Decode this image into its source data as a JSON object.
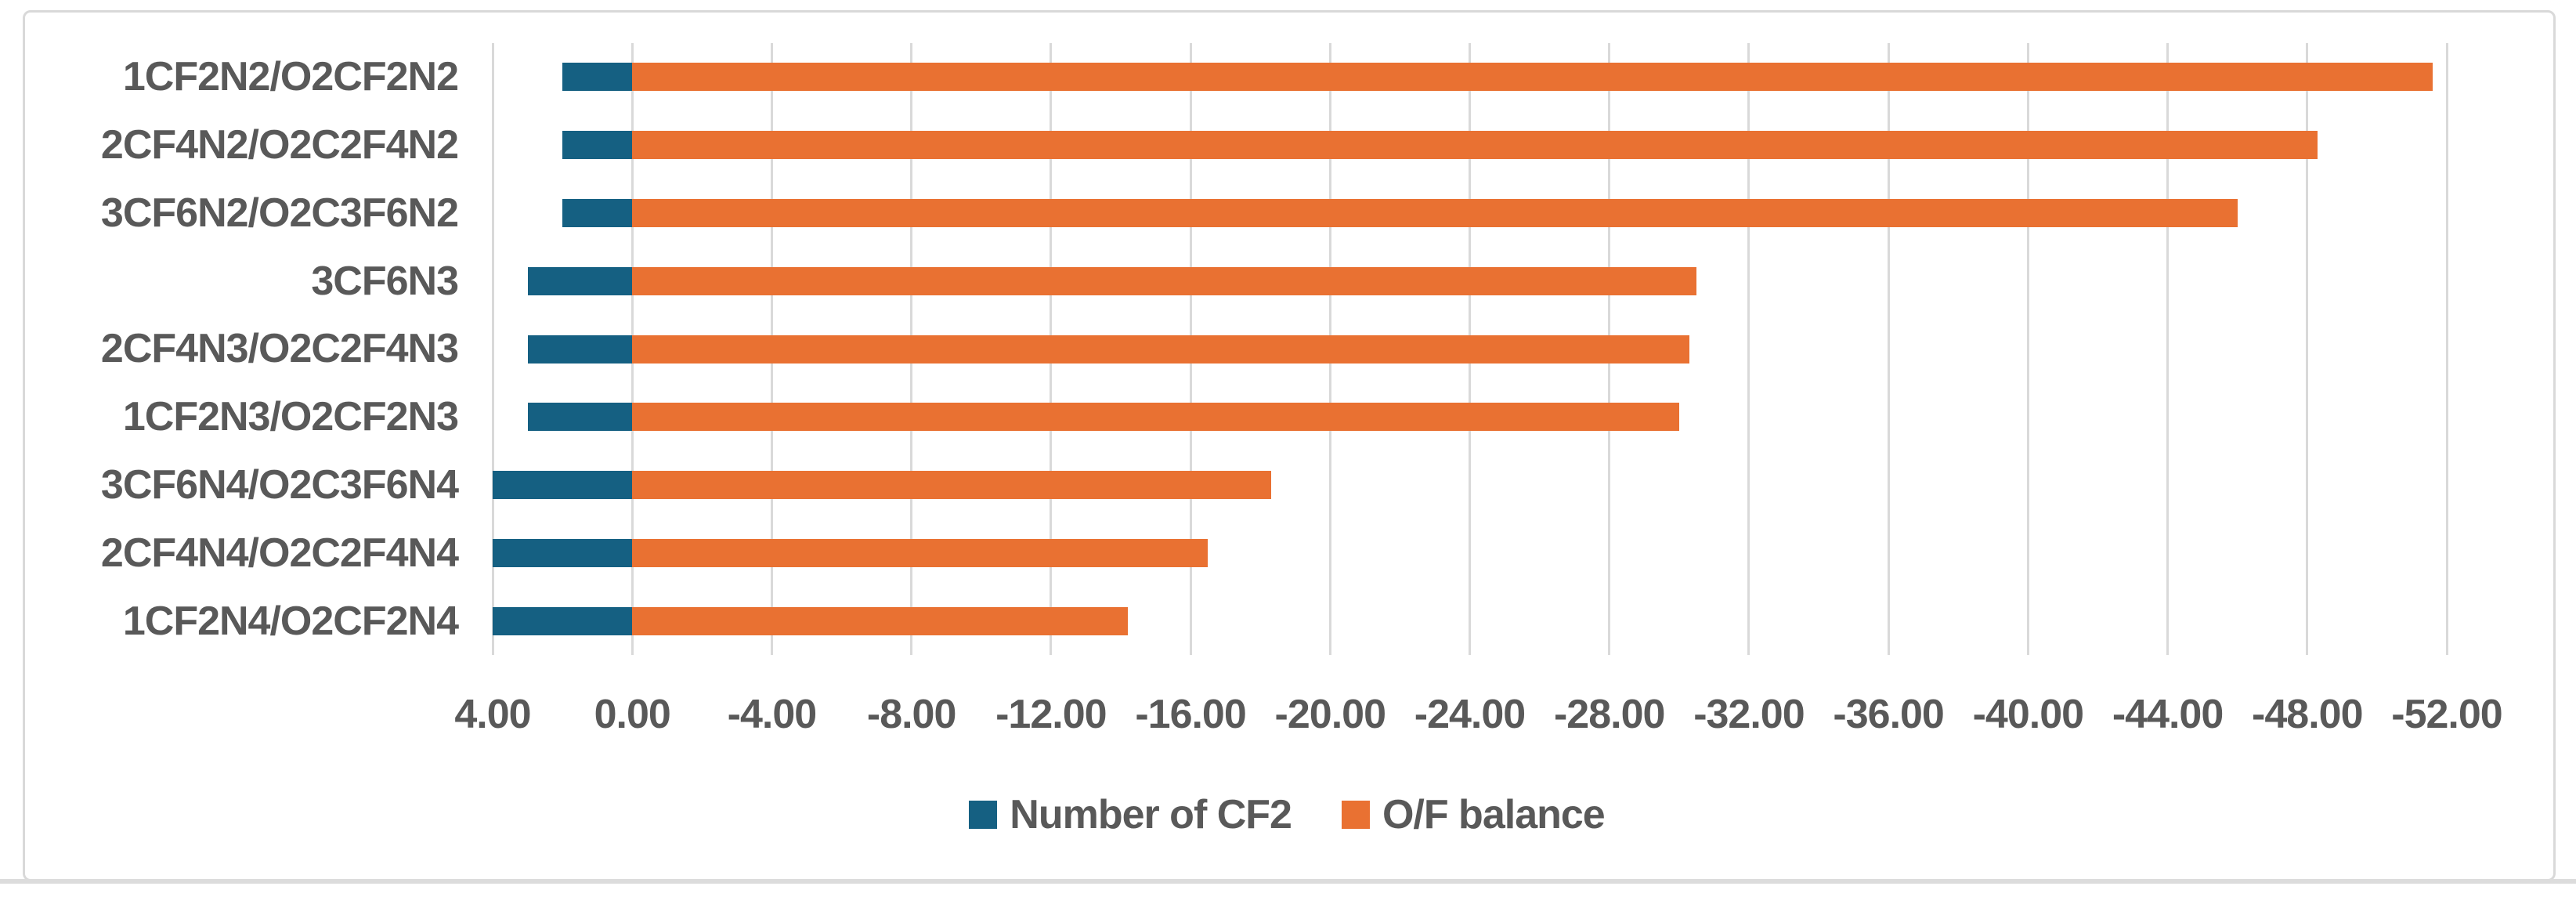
{
  "chart_data": {
    "type": "bar",
    "orientation": "horizontal",
    "title": "",
    "categories": [
      "1CF2N2/O2CF2N2",
      "2CF4N2/O2C2F4N2",
      "3CF6N2/O2C3F6N2",
      "3CF6N3",
      "2CF4N3/O2C2F4N3",
      "1CF2N3/O2CF2N3",
      "3CF6N4/O2C3F6N4",
      "2CF4N4/O2C2F4N4",
      "1CF2N4/O2CF2N4"
    ],
    "series": [
      {
        "name": "Number of CF2",
        "color": "#156082",
        "values": [
          2,
          2,
          2,
          3,
          3,
          3,
          4,
          4,
          4
        ]
      },
      {
        "name": "O/F balance",
        "color": "#E97132",
        "values": [
          -51.6,
          -48.3,
          -46.0,
          -30.5,
          -30.3,
          -30.0,
          -18.3,
          -16.5,
          -14.2
        ]
      }
    ],
    "xaxis": {
      "min": -52,
      "max": 4,
      "step": 4,
      "reversed": true,
      "tick_values": [
        4,
        0,
        -4,
        -8,
        -12,
        -16,
        -20,
        -24,
        -28,
        -32,
        -36,
        -40,
        -44,
        -48,
        -52
      ],
      "tick_labels": [
        "4.00",
        "0.00",
        "-4.00",
        "-8.00",
        "-12.00",
        "-16.00",
        "-20.00",
        "-24.00",
        "-28.00",
        "-32.00",
        "-36.00",
        "-40.00",
        "-44.00",
        "-48.00",
        "-52.00"
      ]
    },
    "grid": true,
    "legend_position": "bottom",
    "colors": {
      "text": "#595959",
      "gridline": "#D9D9D9",
      "border": "#D9D9D9",
      "background": "#FFFFFF"
    }
  }
}
